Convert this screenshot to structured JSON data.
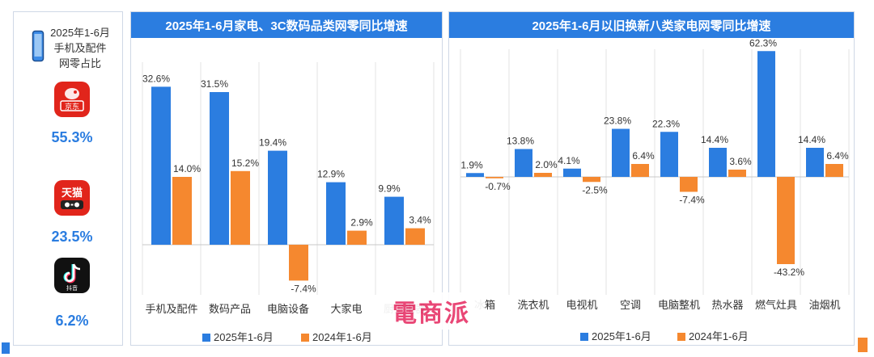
{
  "left_panel": {
    "title_lines": [
      "2025年1-6月",
      "手机及配件",
      "网零占比"
    ],
    "platforms": [
      {
        "name": "京东",
        "share": "55.3%",
        "icon": "jd-logo-icon",
        "color": "#e1251b"
      },
      {
        "name": "天猫",
        "share": "23.5%",
        "icon": "tmall-logo-icon",
        "color": "#e1251b"
      },
      {
        "name": "抖音",
        "share": "6.2%",
        "icon": "douyin-logo-icon",
        "color": "#111111"
      }
    ]
  },
  "watermark": "電商派",
  "colors": {
    "series_2025": "#2b7de0",
    "series_2024": "#f5882f",
    "header": "#2b7de0"
  },
  "chart_data": [
    {
      "type": "bar",
      "title": "2025年1-6月家电、3C数码品类网零同比增速",
      "categories": [
        "手机及配件",
        "数码产品",
        "电脑设备",
        "大家电",
        "厨卫电器"
      ],
      "series": [
        {
          "name": "2025年1-6月",
          "values": [
            32.6,
            31.5,
            19.4,
            12.9,
            9.9
          ],
          "labels": [
            "32.6%",
            "31.5%",
            "19.4%",
            "12.9%",
            "9.9%"
          ]
        },
        {
          "name": "2024年1-6月",
          "values": [
            14.0,
            15.2,
            -7.4,
            2.9,
            3.4
          ],
          "labels": [
            "14.0%",
            "15.2%",
            "-7.4%",
            "2.9%",
            "3.4%"
          ]
        }
      ],
      "ylim": [
        -10,
        35
      ],
      "grid": false,
      "legend": "bottom"
    },
    {
      "type": "bar",
      "title": "2025年1-6月以旧换新八类家电网零同比增速",
      "categories": [
        "冰箱",
        "洗衣机",
        "电视机",
        "空调",
        "电脑整机",
        "热水器",
        "燃气灶具",
        "油烟机"
      ],
      "series": [
        {
          "name": "2025年1-6月",
          "values": [
            1.9,
            13.8,
            4.1,
            23.8,
            22.3,
            14.4,
            62.3,
            14.4
          ],
          "labels": [
            "1.9%",
            "13.8%",
            "4.1%",
            "23.8%",
            "22.3%",
            "14.4%",
            "62.3%",
            "14.4%"
          ]
        },
        {
          "name": "2024年1-6月",
          "values": [
            -0.7,
            2.0,
            -2.5,
            6.4,
            -7.4,
            3.6,
            -43.2,
            6.4
          ],
          "labels": [
            "-0.7%",
            "2.0%",
            "-2.5%",
            "6.4%",
            "-7.4%",
            "3.6%",
            "-43.2%",
            "6.4%"
          ]
        }
      ],
      "ylim": [
        -50,
        70
      ],
      "grid": false,
      "legend": "bottom"
    }
  ]
}
